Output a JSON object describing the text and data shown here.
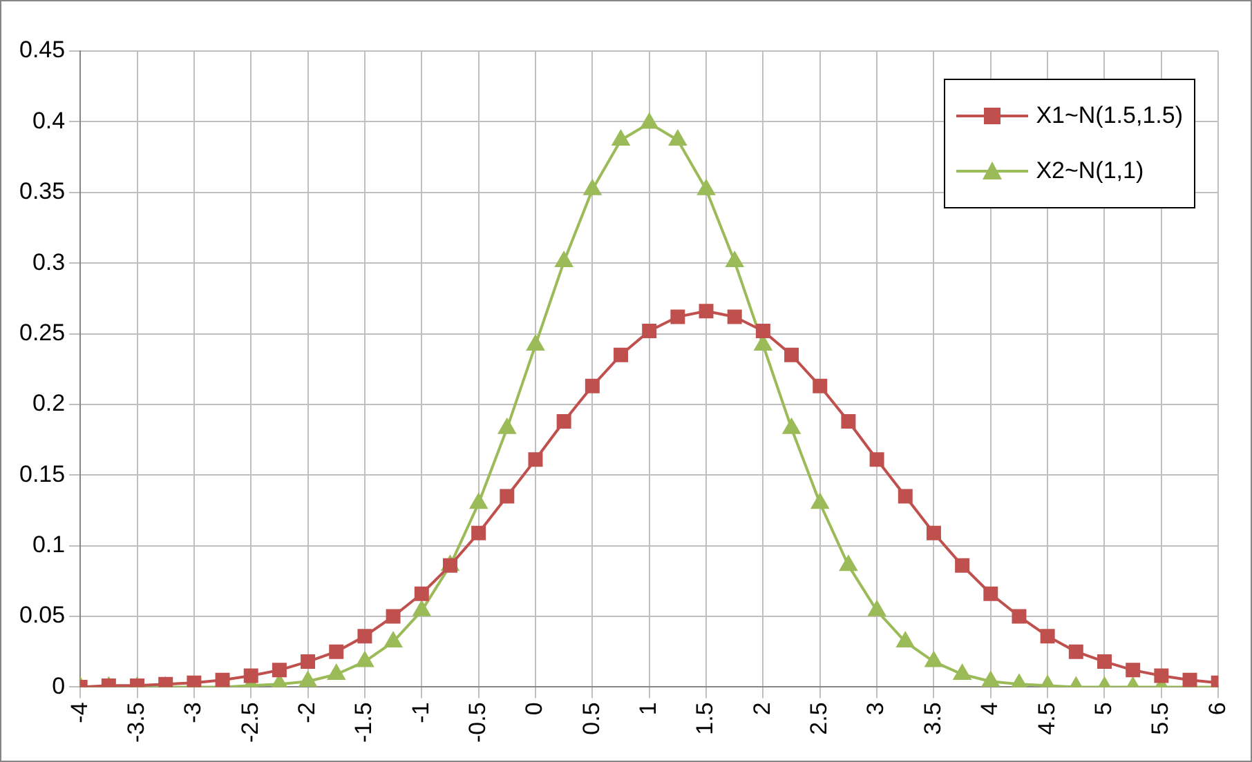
{
  "chart_data": {
    "type": "line",
    "x": [
      -4,
      -3.75,
      -3.5,
      -3.25,
      -3,
      -2.75,
      -2.5,
      -2.25,
      -2,
      -1.75,
      -1.5,
      -1.25,
      -1,
      -0.75,
      -0.5,
      -0.25,
      0,
      0.25,
      0.5,
      0.75,
      1,
      1.25,
      1.5,
      1.75,
      2,
      2.25,
      2.5,
      2.75,
      3,
      3.25,
      3.5,
      3.75,
      4,
      4.25,
      4.5,
      4.75,
      5,
      5.25,
      5.5,
      5.75,
      6
    ],
    "series": [
      {
        "name": "X1~N(1.5,1.5)",
        "color": "#c0504d",
        "marker": "square",
        "values": [
          0.0,
          0.001,
          0.001,
          0.002,
          0.003,
          0.005,
          0.008,
          0.012,
          0.018,
          0.025,
          0.036,
          0.05,
          0.066,
          0.086,
          0.109,
          0.135,
          0.161,
          0.188,
          0.213,
          0.235,
          0.252,
          0.262,
          0.266,
          0.262,
          0.252,
          0.235,
          0.213,
          0.188,
          0.161,
          0.135,
          0.109,
          0.086,
          0.066,
          0.05,
          0.036,
          0.025,
          0.018,
          0.012,
          0.008,
          0.005,
          0.003
        ]
      },
      {
        "name": "X2~N(1,1)",
        "color": "#9bbb59",
        "marker": "triangle",
        "values": [
          0,
          0,
          0,
          0,
          0,
          0,
          0.001,
          0.002,
          0.004,
          0.009,
          0.018,
          0.032,
          0.054,
          0.086,
          0.13,
          0.183,
          0.242,
          0.301,
          0.352,
          0.387,
          0.399,
          0.387,
          0.352,
          0.301,
          0.242,
          0.183,
          0.13,
          0.086,
          0.054,
          0.032,
          0.018,
          0.009,
          0.004,
          0.002,
          0.001,
          0,
          0,
          0,
          0,
          0,
          0
        ]
      }
    ],
    "xlim": [
      -4,
      6
    ],
    "xticks": [
      -4,
      -3.5,
      -3,
      -2.5,
      -2,
      -1.5,
      -1,
      -0.5,
      0,
      0.5,
      1,
      1.5,
      2,
      2.5,
      3,
      3.5,
      4,
      4.5,
      5,
      5.5,
      6
    ],
    "ylim": [
      0,
      0.45
    ],
    "yticks": [
      0,
      0.05,
      0.1,
      0.15,
      0.2,
      0.25,
      0.3,
      0.35,
      0.4,
      0.45
    ],
    "grid": true,
    "legend": "top right",
    "line_style": "solid"
  }
}
